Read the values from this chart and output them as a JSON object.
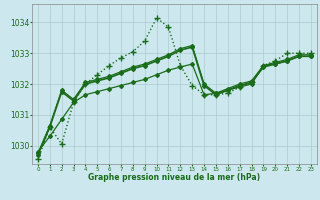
{
  "bg_color": "#cce8ee",
  "grid_color": "#aacccc",
  "line_color": "#1a6b1a",
  "xlabel": "Graphe pression niveau de la mer (hPa)",
  "yticks": [
    1030,
    1031,
    1032,
    1033,
    1034
  ],
  "xtick_labels": [
    "0",
    "1",
    "2",
    "3",
    "4",
    "5",
    "6",
    "7",
    "8",
    "9",
    "10",
    "11",
    "12",
    "13",
    "14",
    "15",
    "16",
    "17",
    "18",
    "19",
    "20",
    "21",
    "22",
    "23"
  ],
  "ylim": [
    1029.4,
    1034.6
  ],
  "xlim": [
    -0.5,
    23.5
  ],
  "series": [
    {
      "x": [
        0,
        1,
        2,
        3,
        4,
        5,
        6,
        7,
        8,
        9,
        10,
        11,
        12,
        13,
        14,
        15,
        16,
        17,
        18,
        19,
        20,
        21,
        22,
        23
      ],
      "y": [
        1029.7,
        1030.6,
        1031.75,
        1031.45,
        1032.0,
        1032.1,
        1032.2,
        1032.35,
        1032.5,
        1032.6,
        1032.75,
        1032.9,
        1033.1,
        1033.2,
        1031.95,
        1031.65,
        1031.8,
        1031.95,
        1032.05,
        1032.55,
        1032.65,
        1032.75,
        1032.9,
        1032.9
      ],
      "linestyle": "-",
      "marker": "D",
      "markersize": 2.0,
      "linewidth": 1.2
    },
    {
      "x": [
        0,
        1,
        2,
        3,
        4,
        5,
        6,
        7,
        8,
        9,
        10,
        11,
        12,
        13,
        14,
        15,
        16,
        17,
        18,
        19,
        20,
        21,
        22,
        23
      ],
      "y": [
        1029.75,
        1030.65,
        1031.8,
        1031.5,
        1032.05,
        1032.15,
        1032.25,
        1032.4,
        1032.55,
        1032.65,
        1032.8,
        1032.95,
        1033.15,
        1033.25,
        1032.0,
        1031.7,
        1031.85,
        1032.0,
        1032.1,
        1032.6,
        1032.7,
        1032.8,
        1032.95,
        1032.95
      ],
      "linestyle": "-",
      "marker": "D",
      "markersize": 2.0,
      "linewidth": 0.9
    },
    {
      "x": [
        0,
        1,
        2,
        3,
        4,
        5,
        6,
        7,
        8,
        9,
        10,
        11,
        12,
        13,
        14,
        15,
        16,
        17,
        18,
        19,
        20,
        21,
        22,
        23
      ],
      "y": [
        1029.8,
        1030.3,
        1030.85,
        1031.4,
        1031.65,
        1031.75,
        1031.85,
        1031.95,
        1032.05,
        1032.15,
        1032.3,
        1032.45,
        1032.55,
        1032.65,
        1031.65,
        1031.7,
        1031.8,
        1031.9,
        1032.0,
        1032.6,
        1032.65,
        1032.75,
        1032.9,
        1032.9
      ],
      "linestyle": "-",
      "marker": "D",
      "markersize": 2.0,
      "linewidth": 0.9
    },
    {
      "x": [
        0,
        1,
        2,
        3,
        4,
        5,
        6,
        7,
        8,
        9,
        10,
        11,
        12,
        13,
        14,
        15,
        16,
        17,
        18,
        19,
        20,
        21,
        22,
        23
      ],
      "y": [
        1029.55,
        1030.6,
        1030.05,
        1031.4,
        1032.0,
        1032.3,
        1032.6,
        1032.85,
        1033.05,
        1033.4,
        1034.15,
        1033.85,
        1032.6,
        1031.95,
        1031.65,
        1031.65,
        1031.7,
        1031.9,
        1032.05,
        1032.6,
        1032.75,
        1033.0,
        1033.0,
        1033.0
      ],
      "linestyle": ":",
      "marker": "+",
      "markersize": 4.5,
      "linewidth": 1.0
    }
  ]
}
